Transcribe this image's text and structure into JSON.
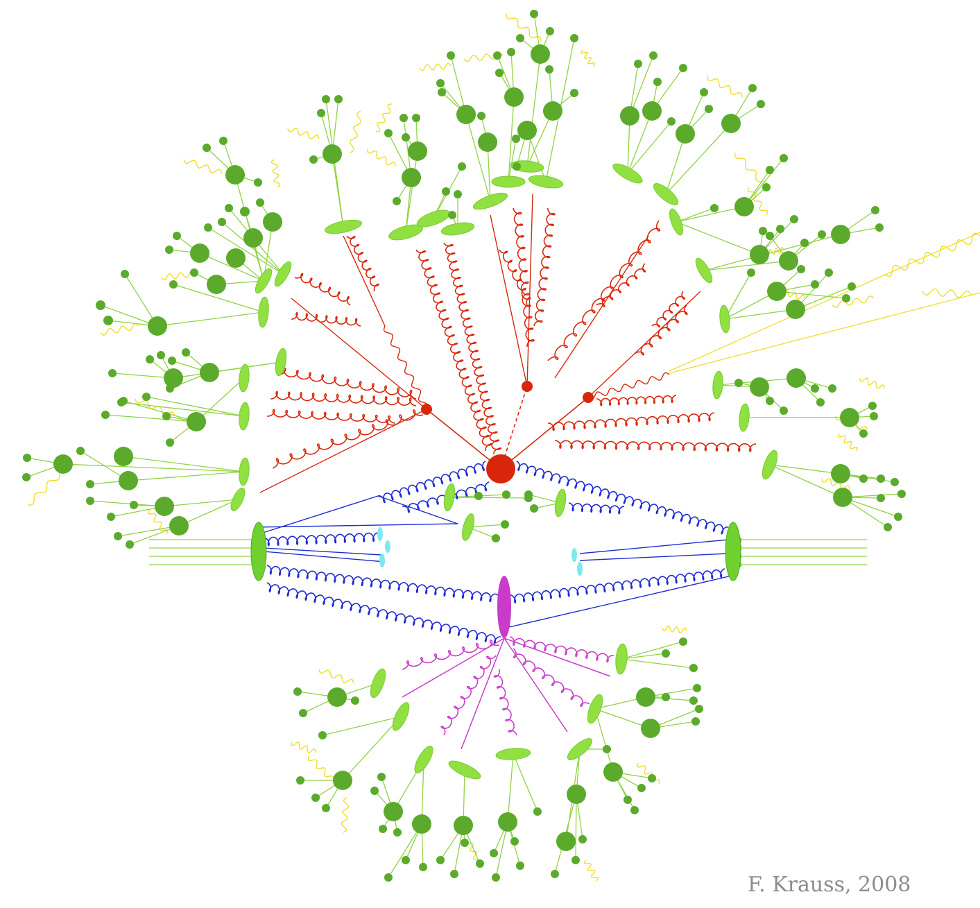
{
  "credit": "F. Krauss, 2008",
  "colors": {
    "hard": "#d9260b",
    "beam": "#1e2cd2",
    "secondary": "#c93cc9",
    "cluster": "#8fe040",
    "hadron": "#5caa2c",
    "arrow": "#8fd243",
    "photon": "#f0dc28",
    "remnant": "#7de8f0"
  },
  "legend": []
}
